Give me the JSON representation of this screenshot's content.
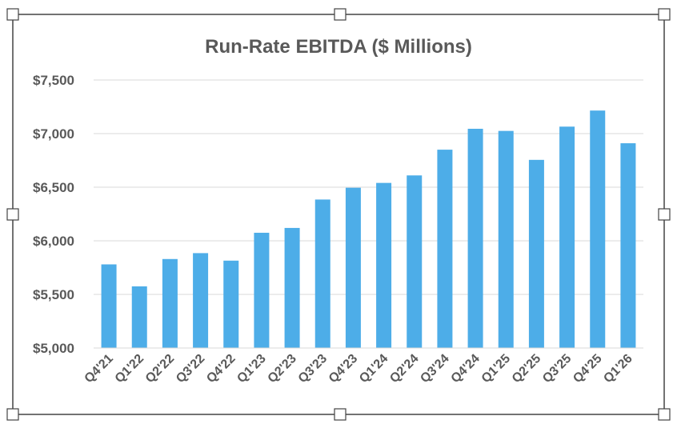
{
  "chart_data": {
    "type": "bar",
    "title": "Run-Rate EBITDA ($ Millions)",
    "categories": [
      "Q4'21",
      "Q1'22",
      "Q2'22",
      "Q3'22",
      "Q4'22",
      "Q1'23",
      "Q2'23",
      "Q3'23",
      "Q4'23",
      "Q1'24",
      "Q2'24",
      "Q3'24",
      "Q4'24",
      "Q1'25",
      "Q2'25",
      "Q3'25",
      "Q4'25",
      "Q1'26"
    ],
    "series": [
      {
        "values": [
          5780,
          5575,
          5830,
          5885,
          5815,
          6075,
          6120,
          6385,
          6495,
          6540,
          6610,
          6850,
          7045,
          7025,
          6755,
          7065,
          7215,
          6910
        ]
      }
    ],
    "ylim": [
      5000,
      7500
    ],
    "yticks": [
      5000,
      5500,
      6000,
      6500,
      7000,
      7500
    ],
    "ytick_labels": [
      "$5,000",
      "$5,500",
      "$6,000",
      "$6,500",
      "$7,000",
      "$7,500"
    ],
    "xlabel": "",
    "ylabel": "",
    "grid": true,
    "bar_color": "#4DADE8",
    "gridline_color": "#D9D9D9",
    "text_color": "#595959"
  }
}
